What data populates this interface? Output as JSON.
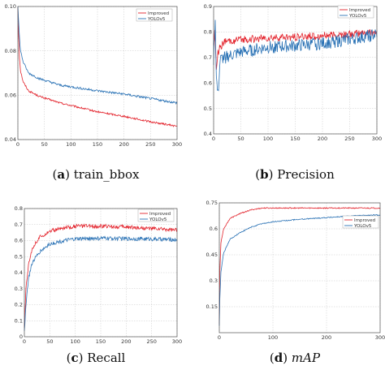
{
  "chart_data": [
    {
      "type": "line",
      "caption": {
        "prefix": "(",
        "letter": "a",
        "suffix": ") ",
        "text": "train_bbox",
        "italic": false
      },
      "xlim": [
        0,
        300
      ],
      "ylim": [
        0.04,
        0.1
      ],
      "xticks": [
        0,
        50,
        100,
        150,
        200,
        250,
        300
      ],
      "yticks": [
        0.04,
        0.06,
        0.08,
        0.1
      ],
      "ytick_labels": [
        "0.04",
        "0.06",
        "0.08",
        "0.10"
      ],
      "grid": true,
      "legend_position": "top-right",
      "series": [
        {
          "name": "Improved",
          "color": "#e3232c",
          "noise": 0.0004,
          "points": [
            [
              0,
              0.1
            ],
            [
              1,
              0.09
            ],
            [
              3,
              0.077
            ],
            [
              5,
              0.071
            ],
            [
              10,
              0.066
            ],
            [
              20,
              0.062
            ],
            [
              40,
              0.0595
            ],
            [
              80,
              0.0565
            ],
            [
              150,
              0.0525
            ],
            [
              200,
              0.0505
            ],
            [
              250,
              0.048
            ],
            [
              300,
              0.046
            ]
          ]
        },
        {
          "name": "YOLOv5",
          "color": "#2a72b5",
          "noise": 0.0005,
          "points": [
            [
              0,
              0.101
            ],
            [
              1,
              0.095
            ],
            [
              3,
              0.086
            ],
            [
              5,
              0.08
            ],
            [
              10,
              0.075
            ],
            [
              20,
              0.07
            ],
            [
              40,
              0.0675
            ],
            [
              80,
              0.0645
            ],
            [
              150,
              0.062
            ],
            [
              200,
              0.0605
            ],
            [
              250,
              0.0585
            ],
            [
              300,
              0.0565
            ]
          ]
        }
      ]
    },
    {
      "type": "line",
      "caption": {
        "prefix": "(",
        "letter": "b",
        "suffix": ") ",
        "text": "Precision",
        "italic": false
      },
      "xlim": [
        0,
        300
      ],
      "ylim": [
        0.4,
        0.9
      ],
      "xticks": [
        0,
        50,
        100,
        150,
        200,
        250,
        300
      ],
      "yticks": [
        0.4,
        0.5,
        0.6,
        0.7,
        0.8,
        0.9
      ],
      "ytick_labels": [
        "0.4",
        "0.5",
        "0.6",
        "0.7",
        "0.8",
        "0.9"
      ],
      "grid": true,
      "legend_position": "top-right",
      "series": [
        {
          "name": "Improved",
          "color": "#e3232c",
          "noise": 0.015,
          "points": [
            [
              0,
              0.76
            ],
            [
              2,
              0.8
            ],
            [
              5,
              0.66
            ],
            [
              8,
              0.72
            ],
            [
              12,
              0.74
            ],
            [
              20,
              0.76
            ],
            [
              50,
              0.77
            ],
            [
              100,
              0.775
            ],
            [
              150,
              0.78
            ],
            [
              200,
              0.785
            ],
            [
              250,
              0.79
            ],
            [
              300,
              0.8
            ]
          ]
        },
        {
          "name": "YOLOv5",
          "color": "#2a72b5",
          "noise": 0.025,
          "points": [
            [
              0,
              0.69
            ],
            [
              3,
              0.85
            ],
            [
              5,
              0.62
            ],
            [
              8,
              0.55
            ],
            [
              12,
              0.69
            ],
            [
              20,
              0.7
            ],
            [
              50,
              0.72
            ],
            [
              100,
              0.74
            ],
            [
              150,
              0.745
            ],
            [
              200,
              0.755
            ],
            [
              250,
              0.77
            ],
            [
              300,
              0.79
            ]
          ]
        }
      ]
    },
    {
      "type": "line",
      "caption": {
        "prefix": "(",
        "letter": "c",
        "suffix": ") ",
        "text": "Recall",
        "italic": false
      },
      "xlim": [
        0,
        300
      ],
      "ylim": [
        0,
        0.8
      ],
      "xticks": [
        0,
        50,
        100,
        150,
        200,
        250,
        300
      ],
      "yticks": [
        0,
        0.1,
        0.2,
        0.3,
        0.4,
        0.5,
        0.6,
        0.7,
        0.8
      ],
      "ytick_labels": [
        "0",
        "0.1",
        "0.2",
        "0.3",
        "0.4",
        "0.5",
        "0.6",
        "0.7",
        "0.8"
      ],
      "grid": true,
      "legend_position": "top-right",
      "series": [
        {
          "name": "Improved",
          "color": "#e3232c",
          "noise": 0.012,
          "points": [
            [
              0,
              0.05
            ],
            [
              3,
              0.3
            ],
            [
              8,
              0.45
            ],
            [
              15,
              0.55
            ],
            [
              30,
              0.62
            ],
            [
              50,
              0.66
            ],
            [
              80,
              0.68
            ],
            [
              100,
              0.69
            ],
            [
              150,
              0.69
            ],
            [
              200,
              0.685
            ],
            [
              250,
              0.675
            ],
            [
              300,
              0.665
            ]
          ]
        },
        {
          "name": "YOLOv5",
          "color": "#2a72b5",
          "noise": 0.012,
          "points": [
            [
              0,
              0.03
            ],
            [
              3,
              0.2
            ],
            [
              8,
              0.36
            ],
            [
              15,
              0.46
            ],
            [
              30,
              0.53
            ],
            [
              50,
              0.58
            ],
            [
              80,
              0.6
            ],
            [
              100,
              0.61
            ],
            [
              150,
              0.615
            ],
            [
              200,
              0.612
            ],
            [
              250,
              0.61
            ],
            [
              300,
              0.605
            ]
          ]
        }
      ]
    },
    {
      "type": "line",
      "caption": {
        "prefix": "(",
        "letter": "d",
        "suffix": ") ",
        "text": "mAP",
        "italic": true
      },
      "xlim": [
        0,
        300
      ],
      "ylim": [
        0,
        0.75
      ],
      "xticks": [
        0,
        100,
        200,
        300
      ],
      "yticks": [
        0.15,
        0.3,
        0.45,
        0.6,
        0.75
      ],
      "ytick_labels": [
        "0.15",
        "0.3",
        "0.45",
        "0.6",
        "0.75"
      ],
      "grid": true,
      "legend_position": "right",
      "series": [
        {
          "name": "Improved",
          "color": "#e3232c",
          "noise": 0.003,
          "points": [
            [
              0,
              0.05
            ],
            [
              1,
              0.35
            ],
            [
              3,
              0.52
            ],
            [
              8,
              0.6
            ],
            [
              20,
              0.66
            ],
            [
              40,
              0.69
            ],
            [
              60,
              0.71
            ],
            [
              80,
              0.72
            ],
            [
              120,
              0.72
            ],
            [
              200,
              0.72
            ],
            [
              300,
              0.72
            ]
          ]
        },
        {
          "name": "YOLOv5",
          "color": "#2a72b5",
          "noise": 0.003,
          "points": [
            [
              0,
              0.04
            ],
            [
              1,
              0.2
            ],
            [
              3,
              0.35
            ],
            [
              8,
              0.46
            ],
            [
              20,
              0.54
            ],
            [
              40,
              0.58
            ],
            [
              60,
              0.61
            ],
            [
              80,
              0.63
            ],
            [
              100,
              0.64
            ],
            [
              150,
              0.655
            ],
            [
              200,
              0.665
            ],
            [
              250,
              0.675
            ],
            [
              300,
              0.68
            ]
          ]
        }
      ]
    }
  ]
}
